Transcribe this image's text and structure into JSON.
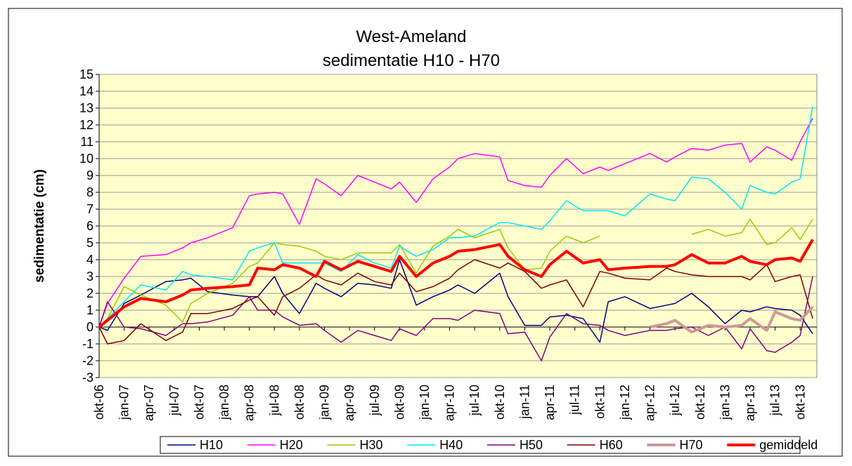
{
  "chart_data": {
    "type": "line",
    "title": "West-Ameland",
    "subtitle": "sedimentatie H10 - H70",
    "y_label": "sedimentatie (cm)",
    "x": [
      0,
      1,
      3,
      5,
      8,
      10,
      11,
      13,
      16,
      18,
      19,
      21,
      22,
      24,
      26,
      27,
      29,
      31,
      33,
      35,
      36,
      38,
      40,
      42,
      43,
      45,
      48,
      49,
      51,
      53,
      54,
      56,
      58,
      60,
      61,
      63,
      66,
      68,
      69,
      71,
      73,
      75,
      77,
      78,
      80,
      81,
      83,
      84,
      85.5
    ],
    "xlim": [
      0,
      86
    ],
    "xticks": [
      {
        "value": 0,
        "label": "okt-06"
      },
      {
        "value": 3,
        "label": "jan-07"
      },
      {
        "value": 6,
        "label": "apr-07"
      },
      {
        "value": 9,
        "label": "jul-07"
      },
      {
        "value": 12,
        "label": "okt-07"
      },
      {
        "value": 15,
        "label": "jan-08"
      },
      {
        "value": 18,
        "label": "apr-08"
      },
      {
        "value": 21,
        "label": "jul-08"
      },
      {
        "value": 24,
        "label": "okt-08"
      },
      {
        "value": 27,
        "label": "jan-09"
      },
      {
        "value": 30,
        "label": "apr-09"
      },
      {
        "value": 33,
        "label": "jul-09"
      },
      {
        "value": 36,
        "label": "okt-09"
      },
      {
        "value": 39,
        "label": "jan-10"
      },
      {
        "value": 42,
        "label": "apr-10"
      },
      {
        "value": 45,
        "label": "jul-10"
      },
      {
        "value": 48,
        "label": "okt-10"
      },
      {
        "value": 51,
        "label": "jan-11"
      },
      {
        "value": 54,
        "label": "apr-11"
      },
      {
        "value": 57,
        "label": "jul-11"
      },
      {
        "value": 60,
        "label": "okt-11"
      },
      {
        "value": 63,
        "label": "jan-12"
      },
      {
        "value": 66,
        "label": "apr-12"
      },
      {
        "value": 69,
        "label": "jul-12"
      },
      {
        "value": 72,
        "label": "okt-12"
      },
      {
        "value": 75,
        "label": "jan-13"
      },
      {
        "value": 78,
        "label": "apr-13"
      },
      {
        "value": 81,
        "label": "jul-13"
      },
      {
        "value": 84,
        "label": "okt-13"
      }
    ],
    "ylim": [
      -3,
      15
    ],
    "yticks": [
      -3,
      -2,
      -1,
      0,
      1,
      2,
      3,
      4,
      5,
      6,
      7,
      8,
      9,
      10,
      11,
      12,
      13,
      14,
      15
    ],
    "grid": true,
    "legend": "bottom",
    "series": [
      {
        "name": "H10",
        "color": "#000080",
        "width": 1.5,
        "values": [
          0,
          -0.2,
          1.4,
          1.9,
          2.7,
          2.8,
          2.9,
          2.1,
          1.9,
          1.8,
          1.8,
          3.0,
          2.0,
          0.8,
          2.6,
          2.3,
          1.8,
          2.6,
          2.5,
          2.3,
          4.0,
          1.3,
          1.8,
          2.2,
          2.5,
          2.0,
          3.2,
          1.8,
          0.1,
          0.1,
          0.6,
          0.7,
          0.5,
          -0.9,
          1.5,
          1.8,
          1.1,
          1.3,
          1.4,
          2.0,
          1.2,
          0.2,
          1.0,
          0.9,
          1.2,
          1.1,
          1.0,
          0.7,
          -0.4
        ]
      },
      {
        "name": "H20",
        "color": "#ff00ff",
        "width": 1.5,
        "values": [
          0,
          1.4,
          2.9,
          4.2,
          4.3,
          4.7,
          5.0,
          5.3,
          5.9,
          7.8,
          7.9,
          8.0,
          7.9,
          6.1,
          8.8,
          8.5,
          7.8,
          9.0,
          8.6,
          8.2,
          8.6,
          7.4,
          8.8,
          9.5,
          10.0,
          10.3,
          10.1,
          8.7,
          8.4,
          8.3,
          9.0,
          10.0,
          9.1,
          9.5,
          9.3,
          9.7,
          10.3,
          9.8,
          10.1,
          10.6,
          10.5,
          10.8,
          10.9,
          9.8,
          10.7,
          10.5,
          9.9,
          11.0,
          12.4
        ]
      },
      {
        "name": "H30",
        "color": "#99cc00",
        "width": 1.5,
        "values": [
          0,
          0.5,
          2.4,
          1.9,
          1.3,
          0.3,
          1.4,
          2.0,
          2.6,
          3.6,
          3.8,
          5.0,
          4.9,
          4.8,
          4.5,
          4.2,
          4.0,
          4.4,
          4.4,
          4.4,
          4.9,
          3.2,
          4.8,
          5.4,
          5.8,
          5.3,
          5.8,
          4.7,
          3.4,
          3.5,
          4.5,
          5.4,
          5.0,
          5.4,
          null,
          null,
          null,
          null,
          null,
          5.5,
          5.8,
          5.4,
          5.6,
          6.4,
          4.9,
          5.0,
          5.9,
          5.2,
          6.4
        ]
      },
      {
        "name": "H40",
        "color": "#00e5ff",
        "width": 1.5,
        "values": [
          0,
          0.5,
          1.5,
          2.5,
          2.2,
          3.3,
          3.1,
          3.0,
          2.8,
          4.5,
          4.7,
          5.0,
          3.8,
          3.8,
          3.8,
          3.8,
          3.3,
          4.3,
          3.8,
          3.5,
          4.8,
          4.2,
          4.6,
          5.3,
          5.3,
          5.4,
          6.2,
          6.2,
          6.0,
          5.8,
          6.3,
          7.5,
          6.9,
          6.9,
          6.9,
          6.6,
          7.9,
          7.6,
          7.5,
          8.9,
          8.8,
          8.0,
          7.0,
          8.4,
          8.0,
          7.9,
          8.6,
          8.8,
          13.1
        ]
      },
      {
        "name": "H50",
        "color": "#800080",
        "width": 1.5,
        "values": [
          0,
          1.5,
          0,
          -0.1,
          -0.5,
          0.2,
          0.2,
          0.3,
          0.7,
          1.8,
          1.0,
          1.0,
          0.6,
          0.1,
          0.2,
          -0.2,
          -0.9,
          -0.2,
          -0.5,
          -0.8,
          -0.1,
          -0.5,
          0.5,
          0.5,
          0.4,
          1.0,
          0.8,
          -0.4,
          -0.3,
          -2.0,
          -0.6,
          0.8,
          0.2,
          0.1,
          -0.2,
          -0.5,
          -0.2,
          -0.2,
          -0.1,
          0,
          -0.5,
          0,
          -1.3,
          -0.1,
          -1.4,
          -1.5,
          -0.9,
          -0.5,
          3.0
        ]
      },
      {
        "name": "H60",
        "color": "#800000",
        "width": 1.5,
        "values": [
          0,
          -1.0,
          -0.8,
          0.2,
          -0.8,
          -0.3,
          0.8,
          0.8,
          1.1,
          1.6,
          1.8,
          0.7,
          1.8,
          2.3,
          3.1,
          2.8,
          2.5,
          3.2,
          2.7,
          2.5,
          3.2,
          2.1,
          2.4,
          2.9,
          3.4,
          4.0,
          3.5,
          3.8,
          3.3,
          2.3,
          2.5,
          2.8,
          1.2,
          3.3,
          3.2,
          2.9,
          2.8,
          3.5,
          3.3,
          3.1,
          3.0,
          3.0,
          3.0,
          2.8,
          3.7,
          2.7,
          3.0,
          3.1,
          0.5
        ]
      },
      {
        "name": "H70",
        "color": "#cc9999",
        "width": 4,
        "values": [
          null,
          null,
          null,
          null,
          null,
          null,
          null,
          null,
          null,
          null,
          null,
          null,
          null,
          null,
          null,
          null,
          null,
          null,
          null,
          null,
          null,
          null,
          null,
          null,
          null,
          null,
          null,
          null,
          null,
          null,
          null,
          null,
          null,
          null,
          null,
          null,
          0,
          0.2,
          0.4,
          -0.3,
          0.1,
          0,
          0.1,
          0.5,
          -0.2,
          0.9,
          0.5,
          0.4,
          1.2
        ]
      },
      {
        "name": "gemiddeld",
        "color": "#ff0000",
        "width": 4,
        "values": [
          0,
          0.4,
          1.2,
          1.7,
          1.5,
          1.9,
          2.2,
          2.3,
          2.4,
          2.5,
          3.5,
          3.4,
          3.7,
          3.5,
          3.0,
          3.9,
          3.4,
          3.9,
          3.6,
          3.3,
          4.2,
          3.0,
          3.8,
          4.2,
          4.5,
          4.6,
          4.9,
          4.2,
          3.4,
          3.0,
          3.7,
          4.5,
          3.8,
          4.0,
          3.4,
          3.5,
          3.6,
          3.6,
          3.7,
          4.3,
          3.8,
          3.8,
          4.2,
          3.9,
          3.7,
          4.0,
          4.1,
          3.9,
          5.2
        ]
      }
    ]
  }
}
